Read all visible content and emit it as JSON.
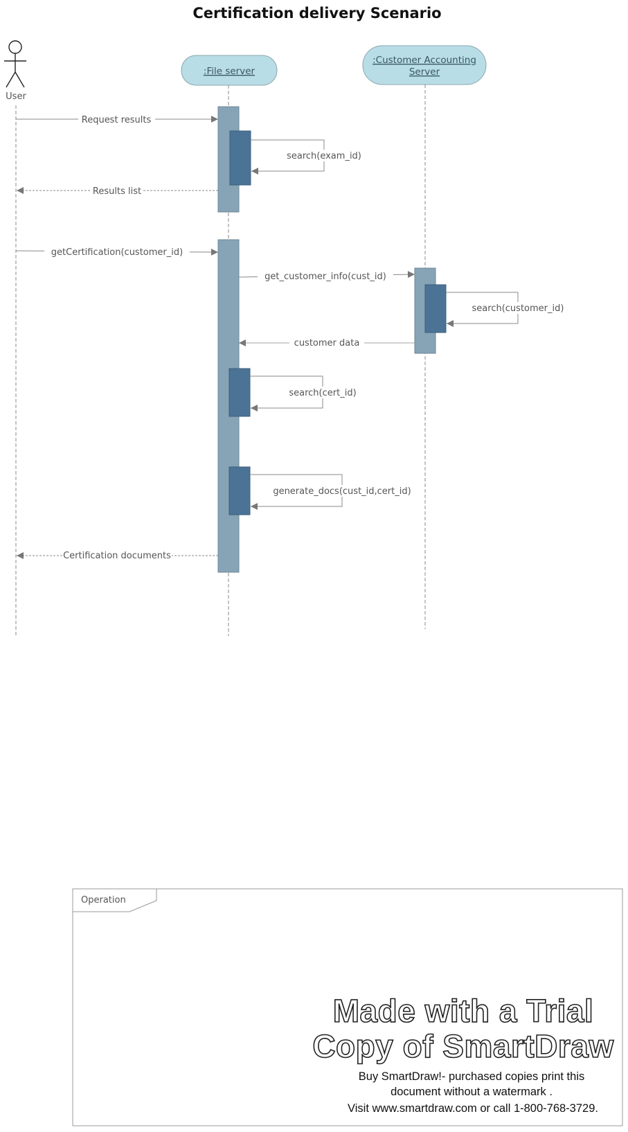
{
  "title": "Certification delivery Scenario",
  "actor": {
    "label": "User"
  },
  "participants": [
    {
      "id": "file",
      "label": ":File server"
    },
    {
      "id": "cas",
      "label_line1": ":Customer Accounting",
      "label_line2": "Server"
    }
  ],
  "messages": [
    {
      "id": "m1",
      "label": "Request results",
      "from": "User",
      "to": ":File server",
      "kind": "sync"
    },
    {
      "id": "m2",
      "label": "search(exam_id)",
      "from": ":File server",
      "to": ":File server",
      "kind": "self"
    },
    {
      "id": "m3",
      "label": "Results list",
      "from": ":File server",
      "to": "User",
      "kind": "return"
    },
    {
      "id": "m4",
      "label": "getCertification(customer_id)",
      "from": "User",
      "to": ":File server",
      "kind": "sync"
    },
    {
      "id": "m5",
      "label": "get_customer_info(cust_id)",
      "from": ":File server",
      "to": ":Customer Accounting Server",
      "kind": "sync"
    },
    {
      "id": "m6",
      "label": "search(customer_id)",
      "from": ":Customer Accounting Server",
      "to": ":Customer Accounting Server",
      "kind": "self"
    },
    {
      "id": "m7",
      "label": "customer data",
      "from": ":Customer Accounting Server",
      "to": ":File server",
      "kind": "return"
    },
    {
      "id": "m8",
      "label": "search(cert_id)",
      "from": ":File server",
      "to": ":File server",
      "kind": "self"
    },
    {
      "id": "m9",
      "label": "generate_docs(cust_id,cert_id)",
      "from": ":File server",
      "to": ":File server",
      "kind": "self"
    },
    {
      "id": "m10",
      "label": "Certification documents",
      "from": ":File server",
      "to": "User",
      "kind": "return"
    }
  ],
  "operation_frame": {
    "label": "Operation"
  },
  "watermark": {
    "line1": "Made with a Trial",
    "line2": "Copy of SmartDraw",
    "note1": "Buy SmartDraw!- purchased copies print this",
    "note2": "document without a watermark .",
    "note3": "Visit www.smartdraw.com or call 1-800-768-3729."
  },
  "colors": {
    "participant_fill": "#b8dde6",
    "activation_outer": "#87a4b6",
    "activation_inner": "#4b7396",
    "line": "#888888"
  }
}
